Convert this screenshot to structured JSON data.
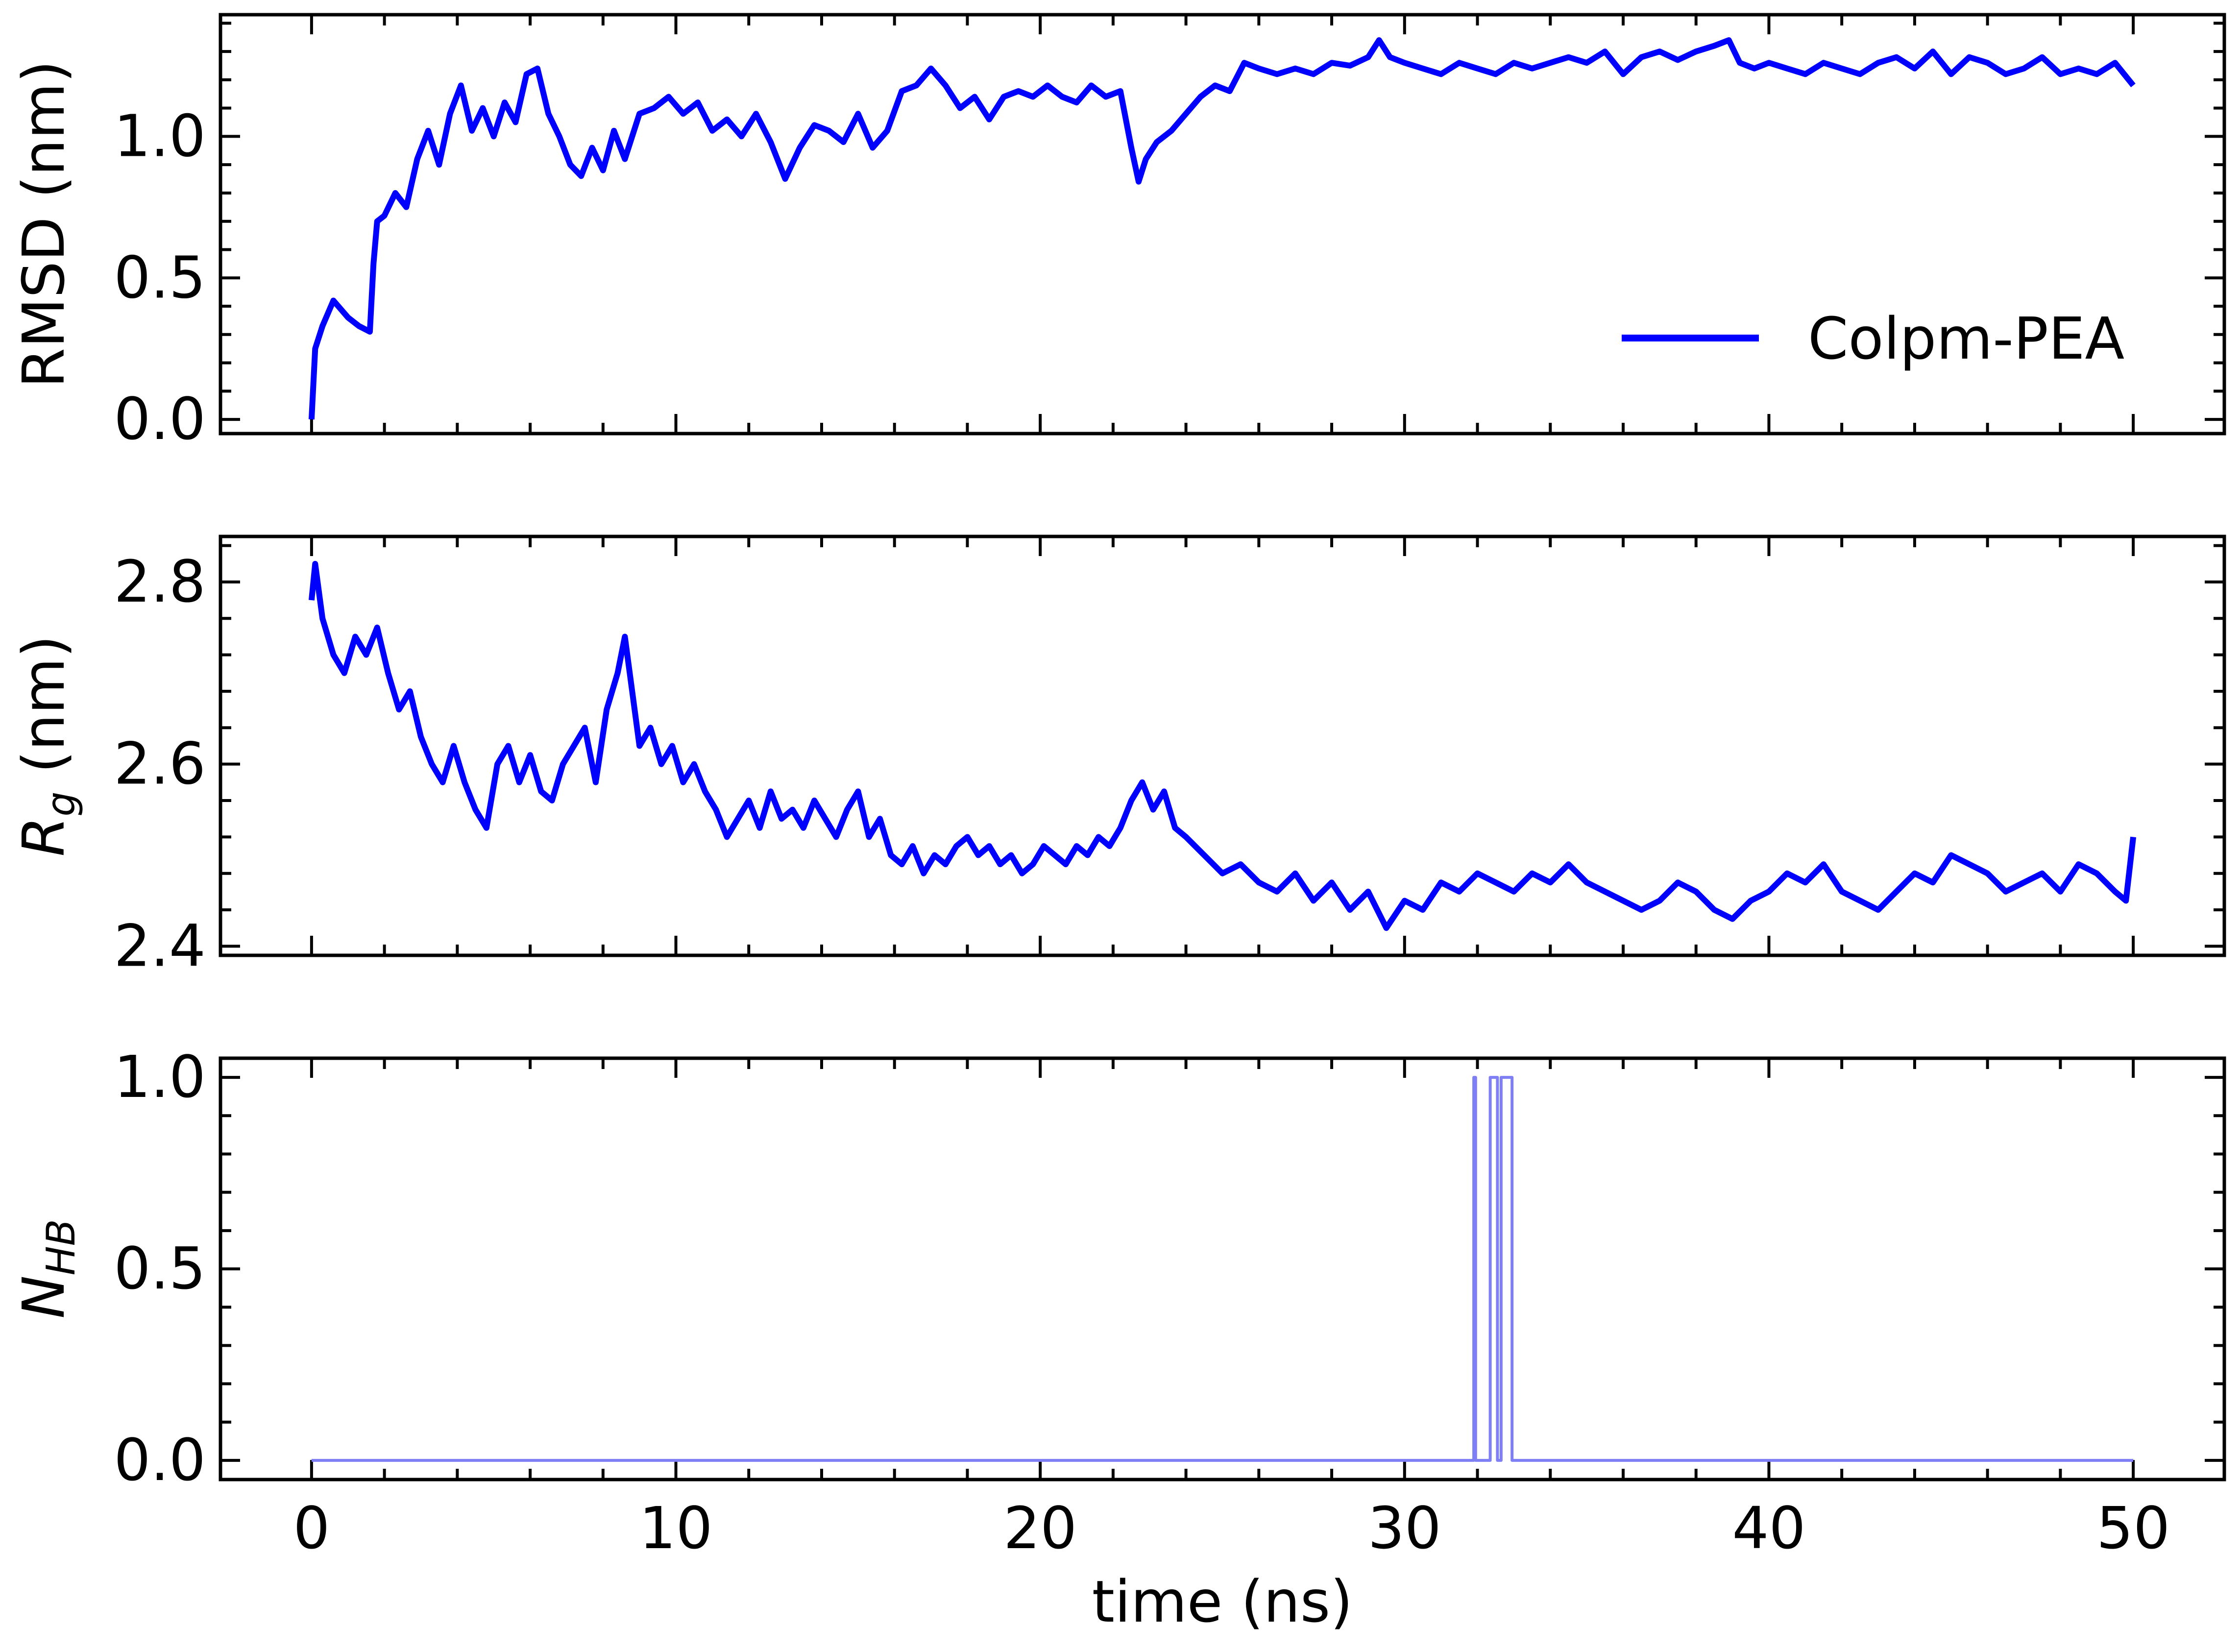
{
  "chart_data": [
    {
      "type": "line",
      "panel": "top",
      "ylabel": "RMSD (nm)",
      "xlim": [
        -2.5,
        52.5
      ],
      "ylim": [
        -0.05,
        1.43
      ],
      "yticks": [
        0.0,
        0.5,
        1.0
      ],
      "ytick_labels": [
        "0.0",
        "0.5",
        "1.0"
      ],
      "xticks": [
        0,
        10,
        20,
        30,
        40,
        50
      ],
      "legend": {
        "placement": "lower-right",
        "entries": [
          "Colpm-PEA"
        ]
      },
      "grid": false,
      "series": [
        {
          "name": "Colpm-PEA",
          "color": "#0000ff",
          "x": [
            0,
            0.1,
            0.3,
            0.6,
            1.0,
            1.3,
            1.6,
            1.7,
            1.8,
            2.0,
            2.3,
            2.6,
            2.9,
            3.2,
            3.5,
            3.8,
            4.1,
            4.4,
            4.7,
            5.0,
            5.3,
            5.6,
            5.9,
            6.2,
            6.5,
            6.8,
            7.1,
            7.4,
            7.7,
            8.0,
            8.3,
            8.6,
            9.0,
            9.4,
            9.8,
            10.2,
            10.6,
            11.0,
            11.4,
            11.8,
            12.2,
            12.6,
            13.0,
            13.4,
            13.8,
            14.2,
            14.6,
            15.0,
            15.4,
            15.8,
            16.2,
            16.6,
            17.0,
            17.4,
            17.8,
            18.2,
            18.6,
            19.0,
            19.4,
            19.8,
            20.2,
            20.6,
            21.0,
            21.4,
            21.8,
            22.2,
            22.5,
            22.7,
            22.9,
            23.2,
            23.6,
            24.0,
            24.4,
            24.8,
            25.2,
            25.6,
            26.0,
            26.5,
            27.0,
            27.5,
            28.0,
            28.5,
            29.0,
            29.3,
            29.6,
            30.0,
            30.5,
            31.0,
            31.5,
            32.0,
            32.5,
            33.0,
            33.5,
            34.0,
            34.5,
            35.0,
            35.5,
            36.0,
            36.5,
            37.0,
            37.5,
            38.0,
            38.5,
            38.9,
            39.2,
            39.6,
            40.0,
            40.5,
            41.0,
            41.5,
            42.0,
            42.5,
            43.0,
            43.5,
            44.0,
            44.5,
            45.0,
            45.5,
            46.0,
            46.5,
            47.0,
            47.5,
            48.0,
            48.5,
            49.0,
            49.5,
            50.0
          ],
          "y": [
            0.0,
            0.25,
            0.33,
            0.42,
            0.36,
            0.33,
            0.31,
            0.55,
            0.7,
            0.72,
            0.8,
            0.75,
            0.92,
            1.02,
            0.9,
            1.08,
            1.18,
            1.02,
            1.1,
            1.0,
            1.12,
            1.05,
            1.22,
            1.24,
            1.08,
            1.0,
            0.9,
            0.86,
            0.96,
            0.88,
            1.02,
            0.92,
            1.08,
            1.1,
            1.14,
            1.08,
            1.12,
            1.02,
            1.06,
            1.0,
            1.08,
            0.98,
            0.85,
            0.96,
            1.04,
            1.02,
            0.98,
            1.08,
            0.96,
            1.02,
            1.16,
            1.18,
            1.24,
            1.18,
            1.1,
            1.14,
            1.06,
            1.14,
            1.16,
            1.14,
            1.18,
            1.14,
            1.12,
            1.18,
            1.14,
            1.16,
            0.96,
            0.84,
            0.92,
            0.98,
            1.02,
            1.08,
            1.14,
            1.18,
            1.16,
            1.26,
            1.24,
            1.22,
            1.24,
            1.22,
            1.26,
            1.25,
            1.28,
            1.34,
            1.28,
            1.26,
            1.24,
            1.22,
            1.26,
            1.24,
            1.22,
            1.26,
            1.24,
            1.26,
            1.28,
            1.26,
            1.3,
            1.22,
            1.28,
            1.3,
            1.27,
            1.3,
            1.32,
            1.34,
            1.26,
            1.24,
            1.26,
            1.24,
            1.22,
            1.26,
            1.24,
            1.22,
            1.26,
            1.28,
            1.24,
            1.3,
            1.22,
            1.28,
            1.26,
            1.22,
            1.24,
            1.28,
            1.22,
            1.24,
            1.22,
            1.26,
            1.18
          ]
        }
      ]
    },
    {
      "type": "line",
      "panel": "middle",
      "ylabel": "R",
      "ylabel_sub": "g",
      "ylabel_unit": " (nm)",
      "xlim": [
        -2.5,
        52.5
      ],
      "ylim": [
        2.39,
        2.85
      ],
      "yticks": [
        2.4,
        2.6,
        2.8
      ],
      "ytick_labels": [
        "2.4",
        "2.6",
        "2.8"
      ],
      "xticks": [
        0,
        10,
        20,
        30,
        40,
        50
      ],
      "grid": false,
      "series": [
        {
          "color": "#0000ff",
          "x": [
            0,
            0.1,
            0.3,
            0.6,
            0.9,
            1.2,
            1.5,
            1.8,
            2.1,
            2.4,
            2.7,
            3.0,
            3.3,
            3.6,
            3.9,
            4.2,
            4.5,
            4.8,
            5.1,
            5.4,
            5.7,
            6.0,
            6.3,
            6.6,
            6.9,
            7.2,
            7.5,
            7.8,
            8.1,
            8.4,
            8.6,
            8.8,
            9.0,
            9.3,
            9.6,
            9.9,
            10.2,
            10.5,
            10.8,
            11.1,
            11.4,
            11.7,
            12.0,
            12.3,
            12.6,
            12.9,
            13.2,
            13.5,
            13.8,
            14.1,
            14.4,
            14.7,
            15.0,
            15.3,
            15.6,
            15.9,
            16.2,
            16.5,
            16.8,
            17.1,
            17.4,
            17.7,
            18.0,
            18.3,
            18.6,
            18.9,
            19.2,
            19.5,
            19.8,
            20.1,
            20.4,
            20.7,
            21.0,
            21.3,
            21.6,
            21.9,
            22.2,
            22.5,
            22.8,
            23.1,
            23.4,
            23.7,
            24.0,
            24.5,
            25.0,
            25.5,
            26.0,
            26.5,
            27.0,
            27.5,
            28.0,
            28.5,
            29.0,
            29.5,
            30.0,
            30.5,
            31.0,
            31.5,
            32.0,
            32.5,
            33.0,
            33.5,
            34.0,
            34.5,
            35.0,
            35.5,
            36.0,
            36.5,
            37.0,
            37.5,
            38.0,
            38.5,
            39.0,
            39.5,
            40.0,
            40.5,
            41.0,
            41.5,
            42.0,
            42.5,
            43.0,
            43.5,
            44.0,
            44.5,
            45.0,
            45.5,
            46.0,
            46.5,
            47.0,
            47.5,
            48.0,
            48.5,
            49.0,
            49.5,
            49.8,
            50.0
          ],
          "y": [
            2.78,
            2.82,
            2.76,
            2.72,
            2.7,
            2.74,
            2.72,
            2.75,
            2.7,
            2.66,
            2.68,
            2.63,
            2.6,
            2.58,
            2.62,
            2.58,
            2.55,
            2.53,
            2.6,
            2.62,
            2.58,
            2.61,
            2.57,
            2.56,
            2.6,
            2.62,
            2.64,
            2.58,
            2.66,
            2.7,
            2.74,
            2.68,
            2.62,
            2.64,
            2.6,
            2.62,
            2.58,
            2.6,
            2.57,
            2.55,
            2.52,
            2.54,
            2.56,
            2.53,
            2.57,
            2.54,
            2.55,
            2.53,
            2.56,
            2.54,
            2.52,
            2.55,
            2.57,
            2.52,
            2.54,
            2.5,
            2.49,
            2.51,
            2.48,
            2.5,
            2.49,
            2.51,
            2.52,
            2.5,
            2.51,
            2.49,
            2.5,
            2.48,
            2.49,
            2.51,
            2.5,
            2.49,
            2.51,
            2.5,
            2.52,
            2.51,
            2.53,
            2.56,
            2.58,
            2.55,
            2.57,
            2.53,
            2.52,
            2.5,
            2.48,
            2.49,
            2.47,
            2.46,
            2.48,
            2.45,
            2.47,
            2.44,
            2.46,
            2.42,
            2.45,
            2.44,
            2.47,
            2.46,
            2.48,
            2.47,
            2.46,
            2.48,
            2.47,
            2.49,
            2.47,
            2.46,
            2.45,
            2.44,
            2.45,
            2.47,
            2.46,
            2.44,
            2.43,
            2.45,
            2.46,
            2.48,
            2.47,
            2.49,
            2.46,
            2.45,
            2.44,
            2.46,
            2.48,
            2.47,
            2.5,
            2.49,
            2.48,
            2.46,
            2.47,
            2.48,
            2.46,
            2.49,
            2.48,
            2.46,
            2.45,
            2.52
          ]
        }
      ]
    },
    {
      "type": "line",
      "panel": "bottom",
      "ylabel": "N",
      "ylabel_sub": "HB",
      "xlabel": "time (ns)",
      "xlim": [
        -2.5,
        52.5
      ],
      "ylim": [
        -0.05,
        1.05
      ],
      "yticks": [
        0.0,
        0.5,
        1.0
      ],
      "ytick_labels": [
        "0.0",
        "0.5",
        "1.0"
      ],
      "xticks": [
        0,
        10,
        20,
        30,
        40,
        50
      ],
      "xtick_labels": [
        "0",
        "10",
        "20",
        "30",
        "40",
        "50"
      ],
      "grid": false,
      "series": [
        {
          "color": "#7f7ff5",
          "x": [
            0,
            31.9,
            31.9,
            31.95,
            31.95,
            32.35,
            32.35,
            32.55,
            32.55,
            32.65,
            32.65,
            32.95,
            32.95,
            50
          ],
          "y": [
            0,
            0,
            1,
            1,
            0,
            0,
            1,
            1,
            0,
            0,
            1,
            1,
            0,
            0
          ]
        }
      ]
    }
  ]
}
